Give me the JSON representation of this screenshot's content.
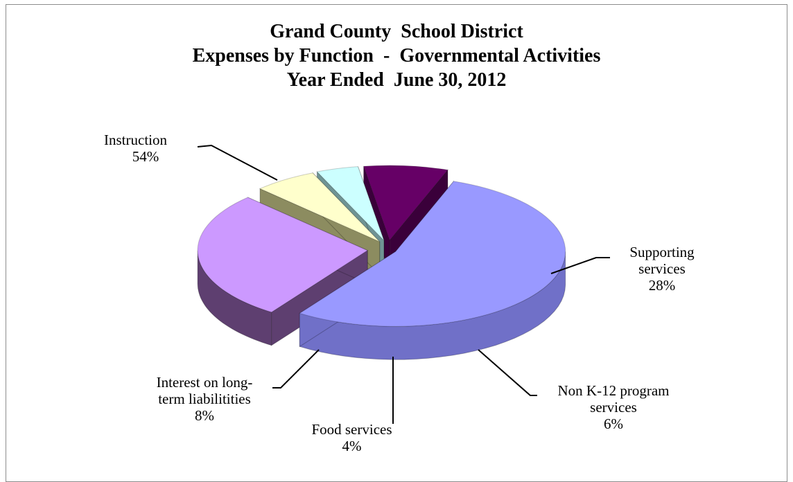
{
  "chart_data": {
    "type": "pie",
    "title": [
      "Grand County  School District",
      "Expenses by Function  -  Governmental Activities",
      "Year Ended  June 30, 2012"
    ],
    "slices": [
      {
        "name": "Instruction",
        "value": 54,
        "percent_label": "54%",
        "color": "#9999ff",
        "side": "#7070c8"
      },
      {
        "name": "Supporting services",
        "value": 28,
        "percent_label": "28%",
        "color": "#cc99ff",
        "side": "#5e3f70"
      },
      {
        "name": "Non K-12 program services",
        "value": 6,
        "percent_label": "6%",
        "color": "#ffffcc",
        "side": "#8c8c60"
      },
      {
        "name": "Food services",
        "value": 4,
        "percent_label": "4%",
        "color": "#ccffff",
        "side": "#6f9494"
      },
      {
        "name": "Interest on long-term liabilitities",
        "value": 8,
        "percent_label": "8%",
        "color": "#660066",
        "side": "#3a003a"
      }
    ]
  },
  "labels": {
    "instruction": {
      "line1": "Instruction",
      "line2": "54%"
    },
    "supporting": {
      "line1": "Supporting",
      "line2": "services",
      "line3": "28%"
    },
    "nonk12": {
      "line1": "Non K-12 program",
      "line2": "services",
      "line3": "6%"
    },
    "food": {
      "line1": "Food services",
      "line2": "4%"
    },
    "interest": {
      "line1": "Interest on long-",
      "line2": "term liabilitities",
      "line3": "8%"
    }
  }
}
